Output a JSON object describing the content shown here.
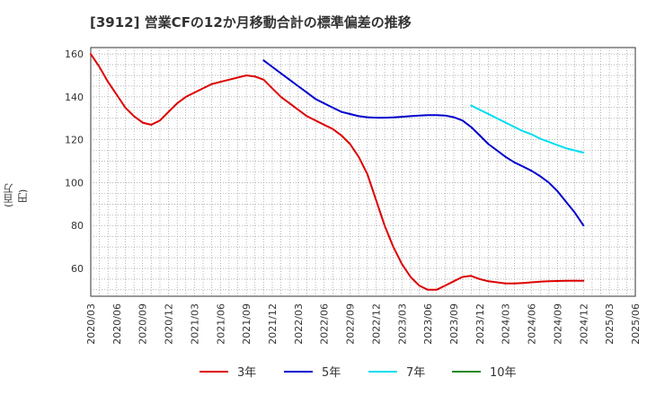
{
  "chart_data": {
    "type": "line",
    "title": "[3912]  営業CFの12か月移動合計の標準偏差の推移",
    "ylabel": "(百万円)",
    "xlabel": "",
    "ylim": [
      47,
      163
    ],
    "yticks": [
      60,
      80,
      100,
      120,
      140,
      160
    ],
    "xticks": [
      "2020/03",
      "2020/06",
      "2020/09",
      "2020/12",
      "2021/03",
      "2021/06",
      "2021/09",
      "2021/12",
      "2022/03",
      "2022/06",
      "2022/09",
      "2022/12",
      "2023/03",
      "2023/06",
      "2023/09",
      "2023/12",
      "2024/03",
      "2024/06",
      "2024/09",
      "2024/12",
      "2025/03",
      "2025/06"
    ],
    "grid": true,
    "legend_position": "bottom",
    "series": [
      {
        "name": "3年",
        "color": "#dd0000",
        "values": [
          [
            0,
            160
          ],
          [
            1,
            154
          ],
          [
            2,
            147
          ],
          [
            3,
            141
          ],
          [
            4,
            135
          ],
          [
            5,
            131
          ],
          [
            6,
            128
          ],
          [
            7,
            127
          ],
          [
            8,
            129
          ],
          [
            9,
            133
          ],
          [
            10,
            137
          ],
          [
            11,
            140
          ],
          [
            12,
            142
          ],
          [
            13,
            144
          ],
          [
            14,
            146
          ],
          [
            15,
            147
          ],
          [
            16,
            148
          ],
          [
            17,
            149
          ],
          [
            18,
            150
          ],
          [
            19,
            149.5
          ],
          [
            20,
            148
          ],
          [
            21,
            144
          ],
          [
            22,
            140
          ],
          [
            23,
            137
          ],
          [
            24,
            134
          ],
          [
            25,
            131
          ],
          [
            26,
            129
          ],
          [
            27,
            127
          ],
          [
            28,
            125
          ],
          [
            29,
            122
          ],
          [
            30,
            118
          ],
          [
            31,
            112
          ],
          [
            32,
            104
          ],
          [
            33,
            92
          ],
          [
            34,
            80
          ],
          [
            35,
            70
          ],
          [
            36,
            62
          ],
          [
            37,
            56
          ],
          [
            38,
            52
          ],
          [
            39,
            50
          ],
          [
            40,
            50
          ],
          [
            41,
            52
          ],
          [
            42,
            54
          ],
          [
            43,
            56
          ],
          [
            44,
            56.5
          ],
          [
            45,
            55
          ],
          [
            46,
            54
          ],
          [
            47,
            53.5
          ],
          [
            48,
            53
          ],
          [
            49,
            53
          ],
          [
            50,
            53.2
          ],
          [
            51,
            53.5
          ],
          [
            52,
            53.8
          ],
          [
            53,
            54
          ],
          [
            54,
            54.1
          ],
          [
            55,
            54.2
          ],
          [
            56,
            54.2
          ],
          [
            57,
            54.2
          ]
        ]
      },
      {
        "name": "5年",
        "color": "#0000cc",
        "values": [
          [
            20,
            157
          ],
          [
            21,
            154
          ],
          [
            22,
            151
          ],
          [
            23,
            148
          ],
          [
            24,
            145
          ],
          [
            25,
            142
          ],
          [
            26,
            139
          ],
          [
            27,
            137
          ],
          [
            28,
            135
          ],
          [
            29,
            133
          ],
          [
            30,
            132
          ],
          [
            31,
            131
          ],
          [
            32,
            130.5
          ],
          [
            33,
            130.3
          ],
          [
            34,
            130.3
          ],
          [
            35,
            130.4
          ],
          [
            36,
            130.7
          ],
          [
            37,
            131
          ],
          [
            38,
            131.3
          ],
          [
            39,
            131.5
          ],
          [
            40,
            131.5
          ],
          [
            41,
            131.3
          ],
          [
            42,
            130.5
          ],
          [
            43,
            129
          ],
          [
            44,
            126
          ],
          [
            45,
            122
          ],
          [
            46,
            118
          ],
          [
            47,
            115
          ],
          [
            48,
            112
          ],
          [
            49,
            109.5
          ],
          [
            50,
            107.5
          ],
          [
            51,
            105.5
          ],
          [
            52,
            103
          ],
          [
            53,
            100
          ],
          [
            54,
            96
          ],
          [
            55,
            91
          ],
          [
            56,
            86
          ],
          [
            57,
            80
          ]
        ]
      },
      {
        "name": "7年",
        "color": "#00ddee",
        "values": [
          [
            44,
            136
          ],
          [
            45,
            134
          ],
          [
            46,
            132
          ],
          [
            47,
            130
          ],
          [
            48,
            128
          ],
          [
            49,
            126
          ],
          [
            50,
            124
          ],
          [
            51,
            122.5
          ],
          [
            52,
            120.5
          ],
          [
            53,
            119
          ],
          [
            54,
            117.5
          ],
          [
            55,
            116
          ],
          [
            56,
            115
          ],
          [
            57,
            114
          ]
        ]
      },
      {
        "name": "10年",
        "color": "#228822",
        "values": []
      }
    ]
  }
}
